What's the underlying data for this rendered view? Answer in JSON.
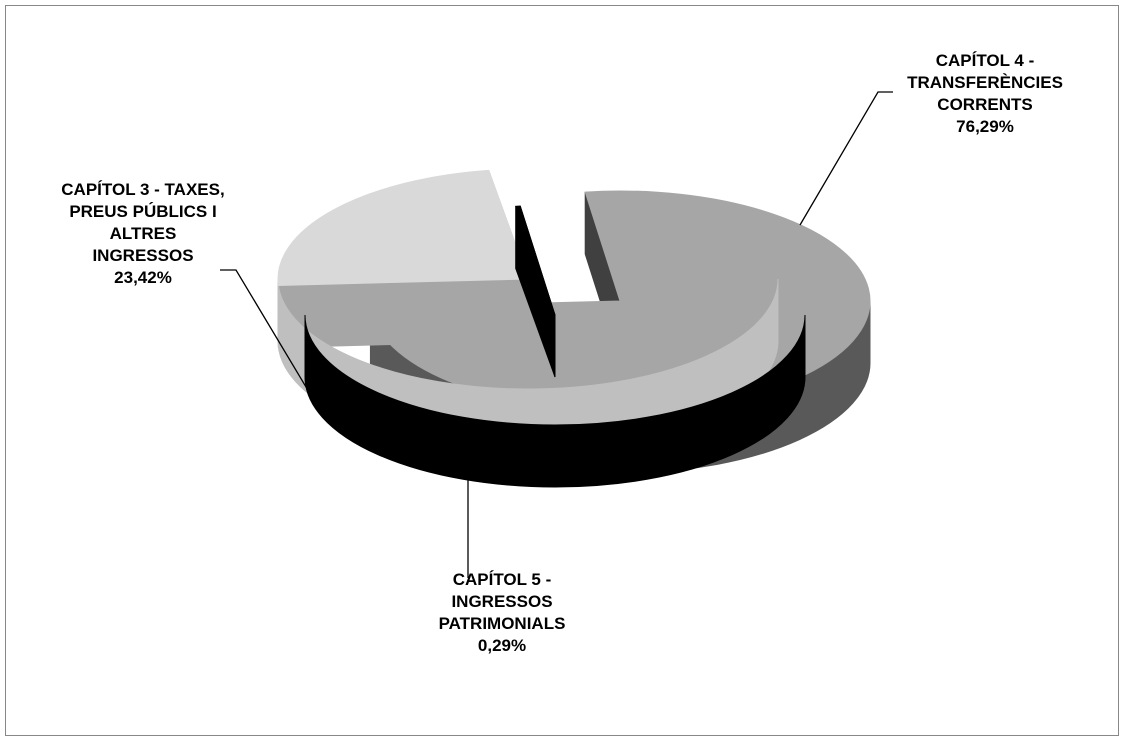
{
  "chart_data": {
    "type": "pie",
    "style": "3d-exploded",
    "slices": [
      {
        "label_lines": [
          "CAPÍTOL 4 -",
          "TRANSFERÈNCIES",
          "CORRENTS"
        ],
        "percent_label": "76,29%",
        "value": 76.29,
        "top_color": "#a6a6a6",
        "side_color": "#595959",
        "edge_color": "#404040"
      },
      {
        "label_lines": [
          "CAPÍTOL 3 - TAXES,",
          "PREUS  PÚBLICS I",
          "ALTRES",
          "INGRESSOS"
        ],
        "percent_label": "23,42%",
        "value": 23.42,
        "top_color": "#d9d9d9",
        "side_color": "#bfbfbf",
        "edge_color": "#a6a6a6"
      },
      {
        "label_lines": [
          "CAPÍTOL 5 -",
          "INGRESSOS",
          "PATRIMONIALS"
        ],
        "percent_label": "0,29%",
        "value": 0.29,
        "top_color": "#000000",
        "side_color": "#000000",
        "edge_color": "#000000"
      }
    ],
    "legend": "none"
  }
}
